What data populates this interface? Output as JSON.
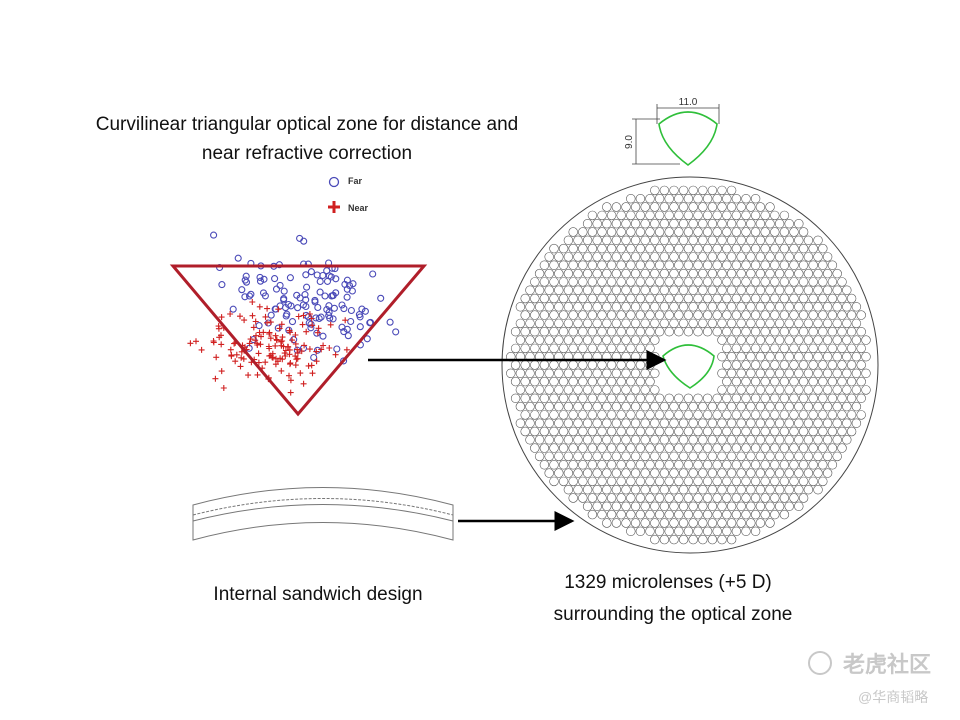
{
  "title": {
    "lines": [
      "Curvilinear triangular optical zone for distance and",
      "near refractive correction"
    ]
  },
  "legend": {
    "far": "Far",
    "near": "Near"
  },
  "dimensions": {
    "width": "11.0",
    "height": "9.0"
  },
  "lens_label": "Internal sandwich design",
  "microlens_label": {
    "lines": [
      "1329 microlenses (+5 D)",
      "surrounding the optical zone"
    ]
  },
  "watermark": {
    "brand": "老虎社区",
    "author": "@华商韬略"
  }
}
